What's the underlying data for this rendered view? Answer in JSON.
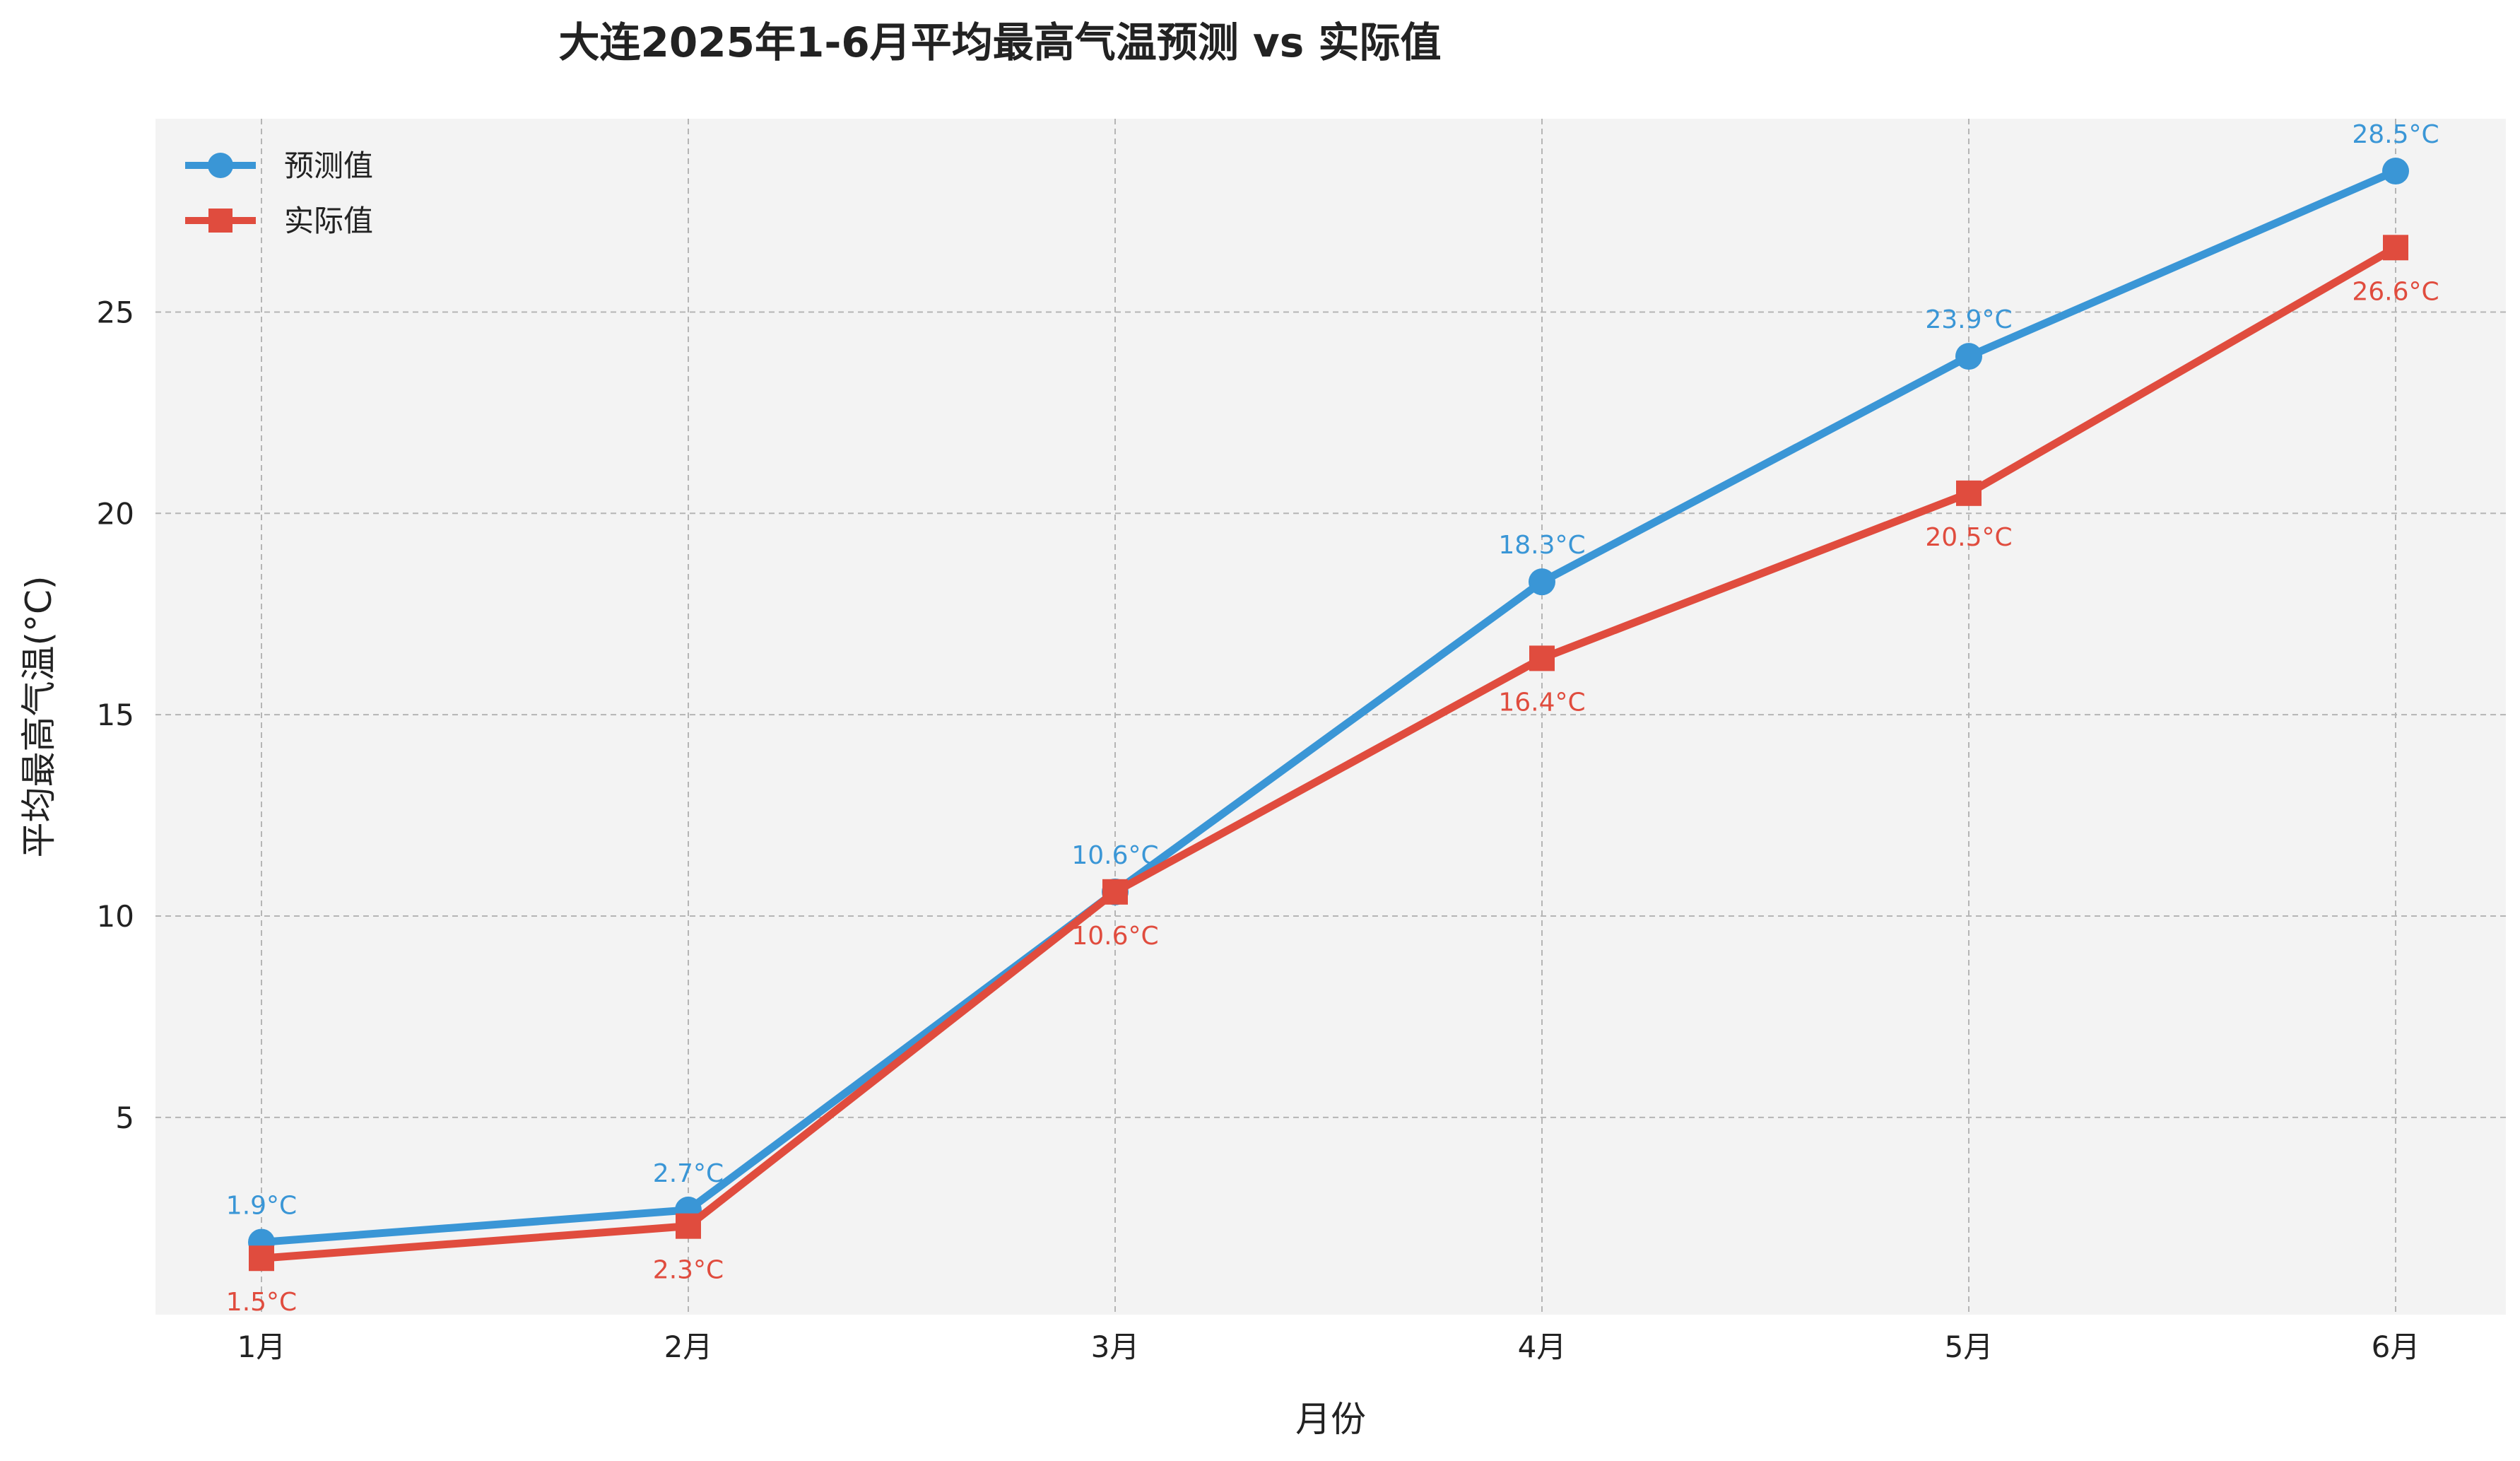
{
  "chart_data": {
    "type": "line",
    "title": "大连2025年1-6月平均最高气温预测 vs 实际值",
    "xlabel": "月份",
    "ylabel": "平均最高气温(°C)",
    "categories": [
      "1月",
      "2月",
      "3月",
      "4月",
      "5月",
      "6月"
    ],
    "ylim": [
      0.1,
      29.8
    ],
    "yticks": [
      5,
      10,
      15,
      20,
      25
    ],
    "grid": true,
    "legend_position": "top-left",
    "label_suffix": "°C",
    "series": [
      {
        "name": "预测值",
        "values": [
          1.9,
          2.7,
          10.6,
          18.3,
          23.9,
          28.5
        ],
        "color": "#3a96d6",
        "marker": "circle",
        "label_position": "above"
      },
      {
        "name": "实际值",
        "values": [
          1.5,
          2.3,
          10.6,
          16.4,
          20.5,
          26.6
        ],
        "color": "#e04c3e",
        "marker": "square",
        "label_position": "below"
      }
    ]
  }
}
